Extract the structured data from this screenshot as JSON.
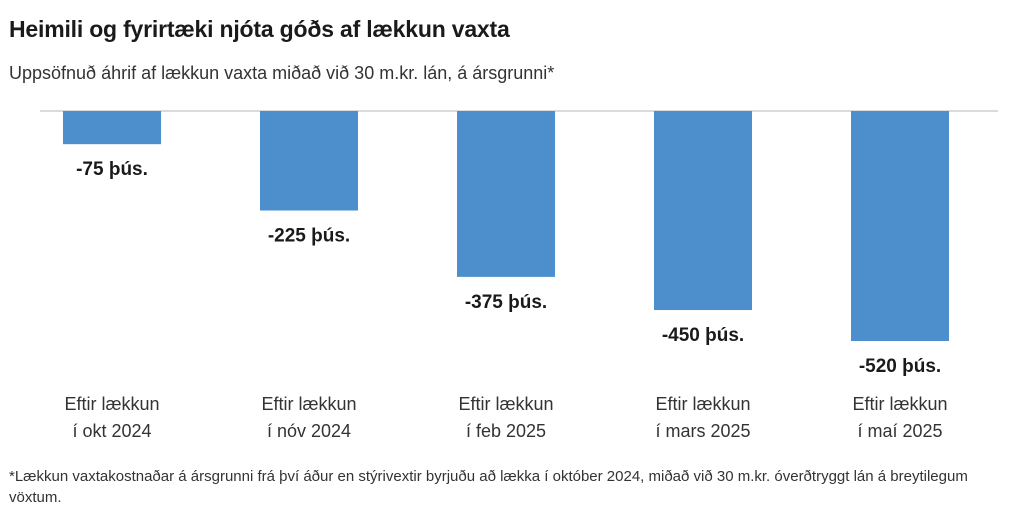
{
  "title": "Heimili og fyrirtæki njóta góðs af lækkun vaxta",
  "subtitle": "Uppsöfnuð áhrif af lækkun vaxta miðað við 30 m.kr. lán, á ársgrunni*",
  "footnote": "*Lækkun vaxtakostnaðar á ársgrunni frá því áður en stýrivextir byrjuðu að lækka í október 2024, miðað við 30 m.kr. óverðtryggt lán á breytilegum vöxtum.",
  "chart_data": {
    "type": "bar",
    "categories": [
      [
        "Eftir lækkun",
        "í okt 2024"
      ],
      [
        "Eftir lækkun",
        "í nóv 2024"
      ],
      [
        "Eftir lækkun",
        "í feb 2025"
      ],
      [
        "Eftir lækkun",
        "í mars 2025"
      ],
      [
        "Eftir lækkun",
        "í maí 2025"
      ]
    ],
    "values": [
      -75,
      -225,
      -375,
      -450,
      -520
    ],
    "data_labels": [
      "-75 þús.",
      "-225 þús.",
      "-375 þús.",
      "-450 þús.",
      "-520 þús."
    ],
    "ylim": [
      -520,
      0
    ],
    "bar_color": "#4d8fcc",
    "grid": false,
    "legend": "none"
  }
}
